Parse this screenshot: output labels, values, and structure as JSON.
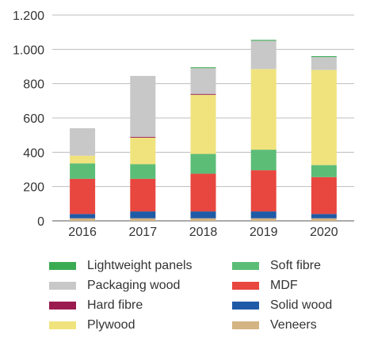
{
  "chart_data": {
    "type": "bar",
    "stacked": true,
    "categories": [
      "2016",
      "2017",
      "2018",
      "2019",
      "2020"
    ],
    "ylim": [
      0,
      1200
    ],
    "yticks": [
      0,
      200,
      400,
      600,
      800,
      1000,
      1200
    ],
    "ytick_labels": [
      "0",
      "200",
      "400",
      "600",
      "800",
      "1.000",
      "1.200"
    ],
    "grid": "horizontal",
    "legend_position": "bottom",
    "series": [
      {
        "name": "Veneers",
        "color": "#d4b483",
        "values": [
          15,
          15,
          15,
          15,
          15
        ]
      },
      {
        "name": "Solid wood",
        "color": "#1f5aa6",
        "values": [
          25,
          40,
          40,
          40,
          25
        ]
      },
      {
        "name": "MDF",
        "color": "#e8473f",
        "values": [
          205,
          190,
          220,
          240,
          215
        ]
      },
      {
        "name": "Soft fibre",
        "color": "#5cbd77",
        "values": [
          90,
          85,
          115,
          120,
          70
        ]
      },
      {
        "name": "Plywood",
        "color": "#f0e37e",
        "values": [
          45,
          155,
          345,
          470,
          555
        ]
      },
      {
        "name": "Hard fibre",
        "color": "#9b1b4f",
        "values": [
          0,
          5,
          5,
          0,
          0
        ]
      },
      {
        "name": "Packaging wood",
        "color": "#c8c8c8",
        "values": [
          160,
          355,
          150,
          165,
          75
        ]
      },
      {
        "name": "Lightweight panels",
        "color": "#3aab52",
        "values": [
          0,
          0,
          5,
          5,
          5
        ]
      }
    ]
  },
  "legend": {
    "items": [
      {
        "label": "Lightweight panels",
        "color": "#3aab52"
      },
      {
        "label": "Soft fibre",
        "color": "#5cbd77"
      },
      {
        "label": "Packaging wood",
        "color": "#c8c8c8"
      },
      {
        "label": "MDF",
        "color": "#e8473f"
      },
      {
        "label": "Hard fibre",
        "color": "#9b1b4f"
      },
      {
        "label": "Solid wood",
        "color": "#1f5aa6"
      },
      {
        "label": "Plywood",
        "color": "#f0e37e"
      },
      {
        "label": "Veneers",
        "color": "#d4b483"
      }
    ]
  }
}
